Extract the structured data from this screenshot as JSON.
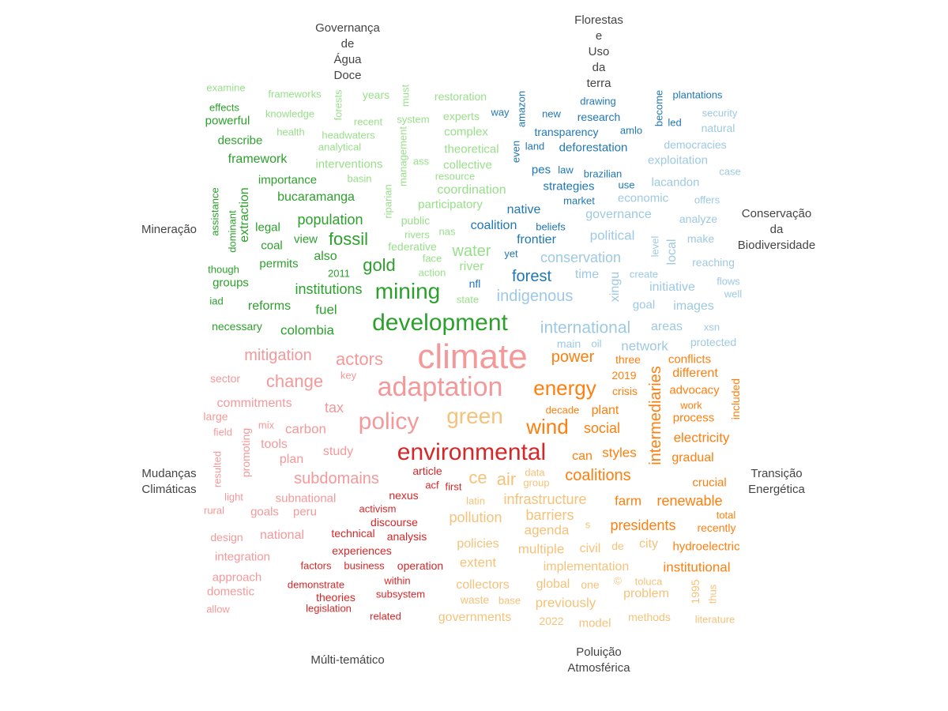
{
  "colors": {
    "green_dark": "#2ca02c",
    "green_light": "#98df8a",
    "blue_dark": "#1f77b4",
    "blue_light": "#9ec9e2",
    "red_dark": "#d62728",
    "red_light": "#f4999a",
    "orange_dark": "#ff7f0e",
    "orange_light": "#f5c27a",
    "label": "#444444"
  },
  "group_labels": {
    "governanca": "Governança\nde\nÁgua\nDoce",
    "florestas": "Florestas\ne\nUso\nda\nterra",
    "mineracao": "Mineração",
    "conservacao": "Conservação\nda\nBiodiversidade",
    "mudancas": "Mudanças\nClimáticas",
    "transicao": "Transição\nEnergética",
    "multi": "Múlti-temático",
    "poluicao": "Poluição\nAtmosférica"
  },
  "words": [
    {
      "t": "examine",
      "c": "green_light"
    },
    {
      "t": "frameworks",
      "c": "green_light"
    },
    {
      "t": "forests",
      "c": "green_light"
    },
    {
      "t": "years",
      "c": "green_light"
    },
    {
      "t": "must",
      "c": "green_light"
    },
    {
      "t": "restoration",
      "c": "green_light"
    },
    {
      "t": "effects",
      "c": "green_dark"
    },
    {
      "t": "knowledge",
      "c": "green_light"
    },
    {
      "t": "powerful",
      "c": "green_dark"
    },
    {
      "t": "recent",
      "c": "green_light"
    },
    {
      "t": "system",
      "c": "green_light"
    },
    {
      "t": "experts",
      "c": "green_light"
    },
    {
      "t": "health",
      "c": "green_light"
    },
    {
      "t": "headwaters",
      "c": "green_light"
    },
    {
      "t": "complex",
      "c": "green_light"
    },
    {
      "t": "describe",
      "c": "green_dark"
    },
    {
      "t": "analytical",
      "c": "green_light"
    },
    {
      "t": "management",
      "c": "green_light"
    },
    {
      "t": "theoretical",
      "c": "green_light"
    },
    {
      "t": "ass",
      "c": "green_light"
    },
    {
      "t": "framework",
      "c": "green_dark"
    },
    {
      "t": "interventions",
      "c": "green_light"
    },
    {
      "t": "collective",
      "c": "green_light"
    },
    {
      "t": "basin",
      "c": "green_light"
    },
    {
      "t": "resource",
      "c": "green_light"
    },
    {
      "t": "importance",
      "c": "green_dark"
    },
    {
      "t": "riparian",
      "c": "green_light"
    },
    {
      "t": "coordination",
      "c": "green_light"
    },
    {
      "t": "assistance",
      "c": "green_dark"
    },
    {
      "t": "extraction",
      "c": "green_dark"
    },
    {
      "t": "bucaramanga",
      "c": "green_dark"
    },
    {
      "t": "participatory",
      "c": "green_light"
    },
    {
      "t": "dominant",
      "c": "green_dark"
    },
    {
      "t": "population",
      "c": "green_dark"
    },
    {
      "t": "public",
      "c": "green_light"
    },
    {
      "t": "legal",
      "c": "green_dark"
    },
    {
      "t": "nas",
      "c": "green_light"
    },
    {
      "t": "rivers",
      "c": "green_light"
    },
    {
      "t": "view",
      "c": "green_dark"
    },
    {
      "t": "fossil",
      "c": "green_dark"
    },
    {
      "t": "coal",
      "c": "green_dark"
    },
    {
      "t": "federative",
      "c": "green_light"
    },
    {
      "t": "water",
      "c": "green_light"
    },
    {
      "t": "though",
      "c": "green_dark"
    },
    {
      "t": "permits",
      "c": "green_dark"
    },
    {
      "t": "also",
      "c": "green_dark"
    },
    {
      "t": "face",
      "c": "green_light"
    },
    {
      "t": "gold",
      "c": "green_dark"
    },
    {
      "t": "river",
      "c": "green_light"
    },
    {
      "t": "2011",
      "c": "green_dark"
    },
    {
      "t": "action",
      "c": "green_light"
    },
    {
      "t": "groups",
      "c": "green_dark"
    },
    {
      "t": "institutions",
      "c": "green_dark"
    },
    {
      "t": "mining",
      "c": "green_dark"
    },
    {
      "t": "iad",
      "c": "green_dark"
    },
    {
      "t": "state",
      "c": "green_light"
    },
    {
      "t": "reforms",
      "c": "green_dark"
    },
    {
      "t": "fuel",
      "c": "green_dark"
    },
    {
      "t": "development",
      "c": "green_dark"
    },
    {
      "t": "necessary",
      "c": "green_dark"
    },
    {
      "t": "colombia",
      "c": "green_dark"
    },
    {
      "t": "way",
      "c": "blue_dark"
    },
    {
      "t": "amazon",
      "c": "blue_dark"
    },
    {
      "t": "drawing",
      "c": "blue_dark"
    },
    {
      "t": "become",
      "c": "blue_dark"
    },
    {
      "t": "plantations",
      "c": "blue_dark"
    },
    {
      "t": "new",
      "c": "blue_dark"
    },
    {
      "t": "research",
      "c": "blue_dark"
    },
    {
      "t": "security",
      "c": "blue_light"
    },
    {
      "t": "led",
      "c": "blue_dark"
    },
    {
      "t": "transparency",
      "c": "blue_dark"
    },
    {
      "t": "amlo",
      "c": "blue_dark"
    },
    {
      "t": "natural",
      "c": "blue_light"
    },
    {
      "t": "land",
      "c": "blue_dark"
    },
    {
      "t": "even",
      "c": "blue_dark"
    },
    {
      "t": "deforestation",
      "c": "blue_dark"
    },
    {
      "t": "democracies",
      "c": "blue_light"
    },
    {
      "t": "exploitation",
      "c": "blue_light"
    },
    {
      "t": "pes",
      "c": "blue_dark"
    },
    {
      "t": "law",
      "c": "blue_dark"
    },
    {
      "t": "brazilian",
      "c": "blue_dark"
    },
    {
      "t": "case",
      "c": "blue_light"
    },
    {
      "t": "strategies",
      "c": "blue_dark"
    },
    {
      "t": "use",
      "c": "blue_dark"
    },
    {
      "t": "lacandon",
      "c": "blue_light"
    },
    {
      "t": "economic",
      "c": "blue_light"
    },
    {
      "t": "market",
      "c": "blue_dark"
    },
    {
      "t": "offers",
      "c": "blue_light"
    },
    {
      "t": "native",
      "c": "blue_dark"
    },
    {
      "t": "governance",
      "c": "blue_light"
    },
    {
      "t": "analyze",
      "c": "blue_light"
    },
    {
      "t": "coalition",
      "c": "blue_dark"
    },
    {
      "t": "beliefs",
      "c": "blue_dark"
    },
    {
      "t": "political",
      "c": "blue_light"
    },
    {
      "t": "level",
      "c": "blue_light"
    },
    {
      "t": "make",
      "c": "blue_light"
    },
    {
      "t": "frontier",
      "c": "blue_dark"
    },
    {
      "t": "local",
      "c": "blue_light"
    },
    {
      "t": "yet",
      "c": "blue_dark"
    },
    {
      "t": "conservation",
      "c": "blue_light"
    },
    {
      "t": "reaching",
      "c": "blue_light"
    },
    {
      "t": "forest",
      "c": "blue_dark"
    },
    {
      "t": "create",
      "c": "blue_light"
    },
    {
      "t": "time",
      "c": "blue_light"
    },
    {
      "t": "xingu",
      "c": "blue_light"
    },
    {
      "t": "nfl",
      "c": "blue_dark"
    },
    {
      "t": "initiative",
      "c": "blue_light"
    },
    {
      "t": "flows",
      "c": "blue_light"
    },
    {
      "t": "indigenous",
      "c": "blue_light"
    },
    {
      "t": "goal",
      "c": "blue_light"
    },
    {
      "t": "well",
      "c": "blue_light"
    },
    {
      "t": "images",
      "c": "blue_light"
    },
    {
      "t": "international",
      "c": "blue_light"
    },
    {
      "t": "areas",
      "c": "blue_light"
    },
    {
      "t": "xsn",
      "c": "blue_light"
    },
    {
      "t": "main",
      "c": "blue_light"
    },
    {
      "t": "oil",
      "c": "blue_light"
    },
    {
      "t": "network",
      "c": "blue_light"
    },
    {
      "t": "protected",
      "c": "blue_light"
    },
    {
      "t": "climate",
      "c": "red_light"
    },
    {
      "t": "mitigation",
      "c": "red_light"
    },
    {
      "t": "actors",
      "c": "red_light"
    },
    {
      "t": "sector",
      "c": "red_light"
    },
    {
      "t": "key",
      "c": "red_light"
    },
    {
      "t": "change",
      "c": "red_light"
    },
    {
      "t": "adaptation",
      "c": "red_light"
    },
    {
      "t": "commitments",
      "c": "red_light"
    },
    {
      "t": "tax",
      "c": "red_light"
    },
    {
      "t": "large",
      "c": "red_light"
    },
    {
      "t": "policy",
      "c": "red_light"
    },
    {
      "t": "mix",
      "c": "red_light"
    },
    {
      "t": "field",
      "c": "red_light"
    },
    {
      "t": "promoting",
      "c": "red_light"
    },
    {
      "t": "carbon",
      "c": "red_light"
    },
    {
      "t": "tools",
      "c": "red_light"
    },
    {
      "t": "resulted",
      "c": "red_light"
    },
    {
      "t": "environmental",
      "c": "red_dark"
    },
    {
      "t": "study",
      "c": "red_light"
    },
    {
      "t": "plan",
      "c": "red_light"
    },
    {
      "t": "article",
      "c": "red_dark"
    },
    {
      "t": "subdomains",
      "c": "red_light"
    },
    {
      "t": "acf",
      "c": "red_dark"
    },
    {
      "t": "first",
      "c": "red_dark"
    },
    {
      "t": "light",
      "c": "red_light"
    },
    {
      "t": "nexus",
      "c": "red_dark"
    },
    {
      "t": "subnational",
      "c": "red_light"
    },
    {
      "t": "activism",
      "c": "red_dark"
    },
    {
      "t": "rural",
      "c": "red_light"
    },
    {
      "t": "goals",
      "c": "red_light"
    },
    {
      "t": "peru",
      "c": "red_light"
    },
    {
      "t": "discourse",
      "c": "red_dark"
    },
    {
      "t": "technical",
      "c": "red_dark"
    },
    {
      "t": "analysis",
      "c": "red_dark"
    },
    {
      "t": "design",
      "c": "red_light"
    },
    {
      "t": "national",
      "c": "red_light"
    },
    {
      "t": "experiences",
      "c": "red_dark"
    },
    {
      "t": "integration",
      "c": "red_light"
    },
    {
      "t": "factors",
      "c": "red_dark"
    },
    {
      "t": "business",
      "c": "red_dark"
    },
    {
      "t": "operation",
      "c": "red_dark"
    },
    {
      "t": "approach",
      "c": "red_light"
    },
    {
      "t": "within",
      "c": "red_dark"
    },
    {
      "t": "demonstrate",
      "c": "red_dark"
    },
    {
      "t": "domestic",
      "c": "red_light"
    },
    {
      "t": "subsystem",
      "c": "red_dark"
    },
    {
      "t": "theories",
      "c": "red_dark"
    },
    {
      "t": "allow",
      "c": "red_light"
    },
    {
      "t": "legislation",
      "c": "red_dark"
    },
    {
      "t": "related",
      "c": "red_dark"
    },
    {
      "t": "power",
      "c": "orange_dark"
    },
    {
      "t": "three",
      "c": "orange_dark"
    },
    {
      "t": "conflicts",
      "c": "orange_dark"
    },
    {
      "t": "intermediaries",
      "c": "orange_dark"
    },
    {
      "t": "different",
      "c": "orange_dark"
    },
    {
      "t": "2019",
      "c": "orange_dark"
    },
    {
      "t": "energy",
      "c": "orange_dark"
    },
    {
      "t": "crisis",
      "c": "orange_dark"
    },
    {
      "t": "advocacy",
      "c": "orange_dark"
    },
    {
      "t": "included",
      "c": "orange_dark"
    },
    {
      "t": "green",
      "c": "orange_light"
    },
    {
      "t": "plant",
      "c": "orange_dark"
    },
    {
      "t": "work",
      "c": "orange_dark"
    },
    {
      "t": "decade",
      "c": "orange_dark"
    },
    {
      "t": "wind",
      "c": "orange_dark"
    },
    {
      "t": "process",
      "c": "orange_dark"
    },
    {
      "t": "social",
      "c": "orange_dark"
    },
    {
      "t": "electricity",
      "c": "orange_dark"
    },
    {
      "t": "can",
      "c": "orange_dark"
    },
    {
      "t": "styles",
      "c": "orange_dark"
    },
    {
      "t": "gradual",
      "c": "orange_dark"
    },
    {
      "t": "coalitions",
      "c": "orange_dark"
    },
    {
      "t": "ce",
      "c": "orange_light"
    },
    {
      "t": "air",
      "c": "orange_light"
    },
    {
      "t": "data",
      "c": "orange_light"
    },
    {
      "t": "group",
      "c": "orange_light"
    },
    {
      "t": "crucial",
      "c": "orange_dark"
    },
    {
      "t": "latin",
      "c": "orange_light"
    },
    {
      "t": "infrastructure",
      "c": "orange_light"
    },
    {
      "t": "farm",
      "c": "orange_dark"
    },
    {
      "t": "renewable",
      "c": "orange_dark"
    },
    {
      "t": "pollution",
      "c": "orange_light"
    },
    {
      "t": "barriers",
      "c": "orange_light"
    },
    {
      "t": "total",
      "c": "orange_dark"
    },
    {
      "t": "agenda",
      "c": "orange_light"
    },
    {
      "t": "s",
      "c": "orange_light"
    },
    {
      "t": "presidents",
      "c": "orange_dark"
    },
    {
      "t": "recently",
      "c": "orange_dark"
    },
    {
      "t": "policies",
      "c": "orange_light"
    },
    {
      "t": "multiple",
      "c": "orange_light"
    },
    {
      "t": "civil",
      "c": "orange_light"
    },
    {
      "t": "de",
      "c": "orange_light"
    },
    {
      "t": "city",
      "c": "orange_light"
    },
    {
      "t": "hydroelectric",
      "c": "orange_dark"
    },
    {
      "t": "extent",
      "c": "orange_light"
    },
    {
      "t": "implementation",
      "c": "orange_light"
    },
    {
      "t": "institutional",
      "c": "orange_dark"
    },
    {
      "t": "collectors",
      "c": "orange_light"
    },
    {
      "t": "global",
      "c": "orange_light"
    },
    {
      "t": "one",
      "c": "orange_light"
    },
    {
      "t": "©",
      "c": "orange_light"
    },
    {
      "t": "toluca",
      "c": "orange_light"
    },
    {
      "t": "1995",
      "c": "orange_light"
    },
    {
      "t": "thus",
      "c": "orange_light"
    },
    {
      "t": "problem",
      "c": "orange_light"
    },
    {
      "t": "waste",
      "c": "orange_light"
    },
    {
      "t": "base",
      "c": "orange_light"
    },
    {
      "t": "previously",
      "c": "orange_light"
    },
    {
      "t": "governments",
      "c": "orange_light"
    },
    {
      "t": "methods",
      "c": "orange_light"
    },
    {
      "t": "2022",
      "c": "orange_light"
    },
    {
      "t": "model",
      "c": "orange_light"
    },
    {
      "t": "literature",
      "c": "orange_light"
    }
  ]
}
